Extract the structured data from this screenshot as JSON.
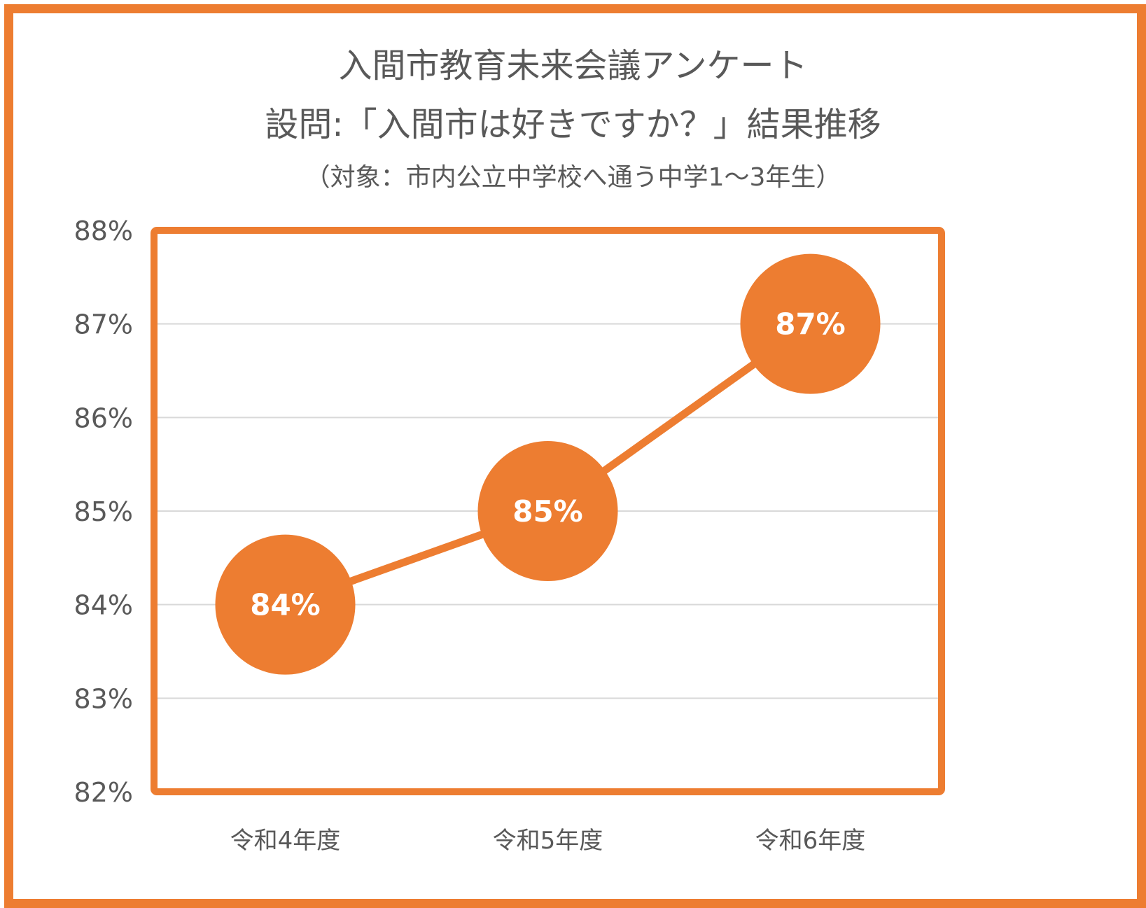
{
  "colors": {
    "accent": "#ED7D31",
    "text": "#595959",
    "grid": "#D9D9D9",
    "label": "#FFFFFF"
  },
  "chart_data": {
    "type": "line",
    "title": [
      "入間市教育未来会議アンケート",
      "設問:「入間市は好きですか？」結果推移"
    ],
    "subtitle": "（対象：市内公立中学校へ通う中学1〜3年生）",
    "categories": [
      "令和4年度",
      "令和5年度",
      "令和6年度"
    ],
    "series": [
      {
        "values": [
          84,
          85,
          87
        ],
        "data_labels": [
          "84%",
          "85%",
          "87%"
        ]
      }
    ],
    "ylim": [
      82,
      88
    ],
    "yticks": [
      82,
      83,
      84,
      85,
      86,
      87,
      88
    ],
    "ytick_labels": [
      "82%",
      "83%",
      "84%",
      "85%",
      "86%",
      "87%",
      "88%"
    ],
    "grid": true,
    "legend": "none"
  }
}
